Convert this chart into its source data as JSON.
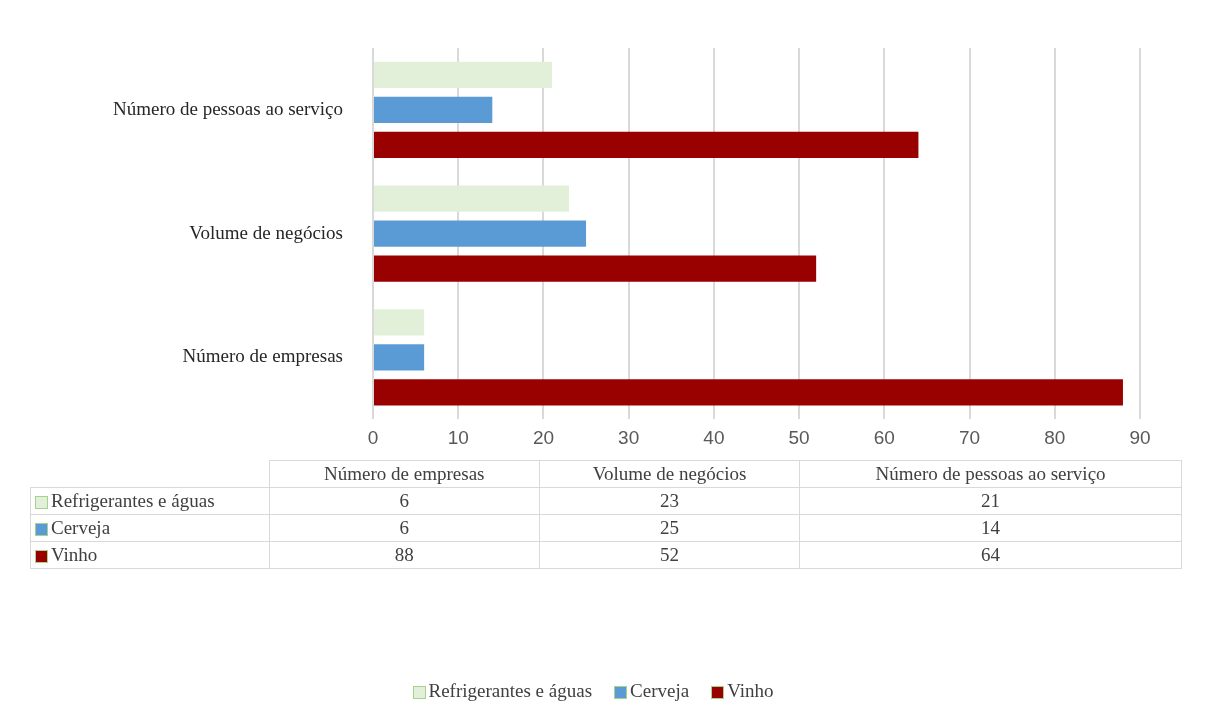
{
  "chart_data": [
    {
      "type": "bar",
      "orientation": "horizontal",
      "categories": [
        "Número de pessoas ao serviço",
        "Volume de negócios",
        "Número de empresas"
      ],
      "series": [
        {
          "name": "Refrigerantes e águas",
          "color": "#e2f0d9",
          "values": [
            21,
            23,
            6
          ]
        },
        {
          "name": "Cerveja",
          "color": "#5b9bd5",
          "values": [
            14,
            25,
            6
          ]
        },
        {
          "name": "Vinho",
          "color": "#990000",
          "values": [
            64,
            52,
            88
          ]
        }
      ],
      "xlim": [
        0,
        90
      ],
      "xticks": [
        0,
        10,
        20,
        30,
        40,
        50,
        60,
        70,
        80,
        90
      ],
      "grid": "x",
      "legend": "bottom"
    },
    {
      "type": "other",
      "categories": [
        "Número de empresas",
        "Volume de negócios",
        "Número de pessoas ao serviço"
      ],
      "series": [
        {
          "name": "Refrigerantes e águas",
          "color": "#e2f0d9",
          "values": [
            6,
            23,
            21
          ]
        },
        {
          "name": "Cerveja",
          "color": "#5b9bd5",
          "values": [
            6,
            25,
            14
          ]
        },
        {
          "name": "Vinho",
          "color": "#990000",
          "values": [
            88,
            52,
            64
          ]
        }
      ],
      "data_labels": true
    }
  ]
}
